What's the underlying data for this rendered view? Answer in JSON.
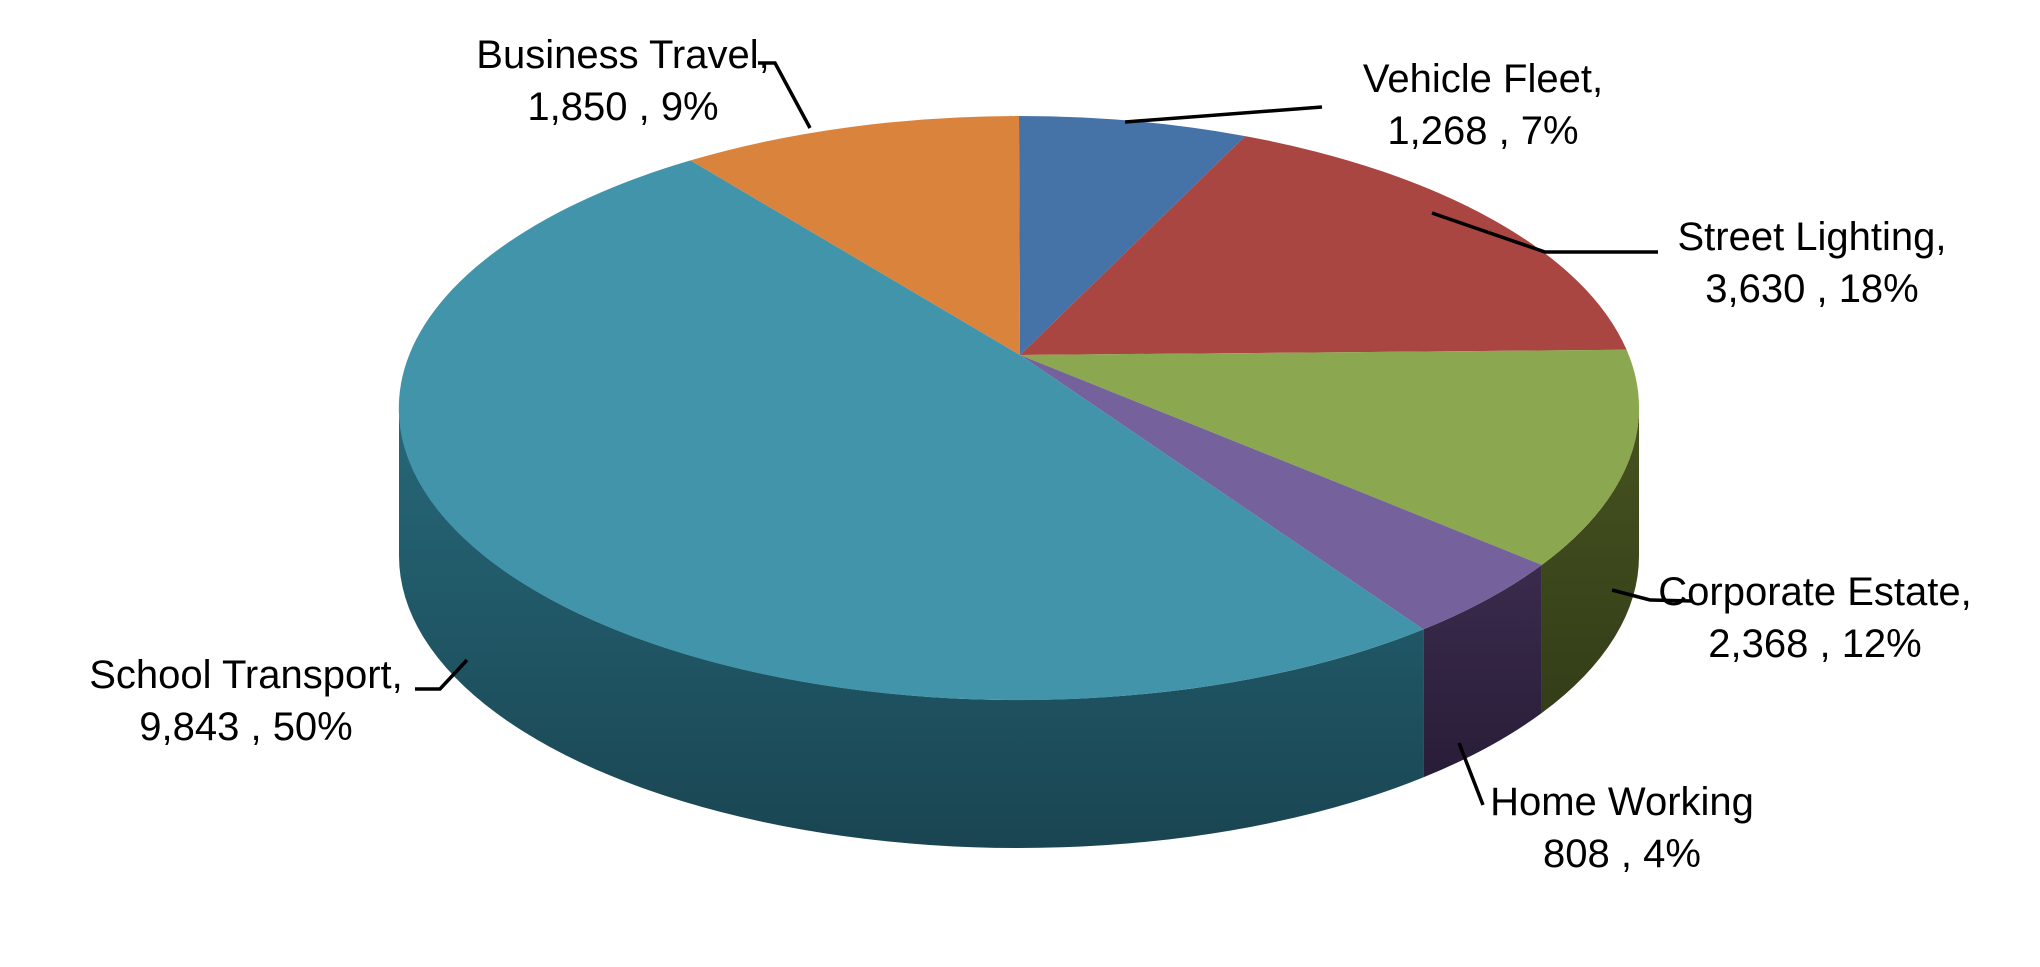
{
  "chart": {
    "background_color": "#ffffff",
    "text_color": "#000000"
  },
  "chart_data": {
    "type": "pie",
    "title": "",
    "effect": "3d",
    "legend_position": "none",
    "label_style": "outside labels with leader lines, format: name, value , percent",
    "direction": "clockwise",
    "start_angle_deg": 0,
    "total": 19767,
    "categories": [
      "Vehicle Fleet",
      "Street Lighting",
      "Corporate Estate",
      "Home Working",
      "School Transport",
      "Business Travel"
    ],
    "values": [
      1268,
      3630,
      2368,
      808,
      9843,
      1850
    ],
    "percents": [
      7,
      18,
      12,
      4,
      50,
      9
    ],
    "slices": [
      {
        "name": "Vehicle Fleet",
        "value": 1268,
        "percent": 7,
        "color": "#4572A7",
        "label_line1": "Vehicle Fleet,",
        "label_line2": "1,268 , 7%",
        "arc_start_deg": 0,
        "arc_end_deg": 21.4
      },
      {
        "name": "Street Lighting",
        "value": 3630,
        "percent": 18,
        "color": "#AA4642",
        "label_line1": "Street Lighting,",
        "label_line2": "3,630 , 18%",
        "arc_start_deg": 21.4,
        "arc_end_deg": 78.5
      },
      {
        "name": "Corporate Estate",
        "value": 2368,
        "percent": 12,
        "color": "#8BA74F",
        "side_top": "#46531F",
        "side_bottom": "#333D18",
        "label_line1": "Corporate Estate,",
        "label_line2": "2,368 , 12%",
        "arc_start_deg": 78.5,
        "arc_end_deg": 122.5
      },
      {
        "name": "Home Working",
        "value": 808,
        "percent": 4,
        "color": "#75619B",
        "side_top": "#3A2B4C",
        "side_bottom": "#281D38",
        "label_line1": "Home Working",
        "label_line2": "808 , 4%",
        "arc_start_deg": 122.5,
        "arc_end_deg": 139.3
      },
      {
        "name": "School Transport",
        "value": 9843,
        "percent": 50,
        "color": "#4294AB",
        "side_top": "#266879",
        "side_bottom": "#1A4552",
        "label_line1": "School Transport,",
        "label_line2": "9,843 , 50%",
        "arc_start_deg": 139.3,
        "arc_end_deg": 328
      },
      {
        "name": "Business Travel",
        "value": 1850,
        "percent": 9,
        "color": "#D9833C",
        "label_line1": "Business Travel,",
        "label_line2": "1,850 , 9%",
        "arc_start_deg": 328,
        "arc_end_deg": 360
      }
    ]
  }
}
